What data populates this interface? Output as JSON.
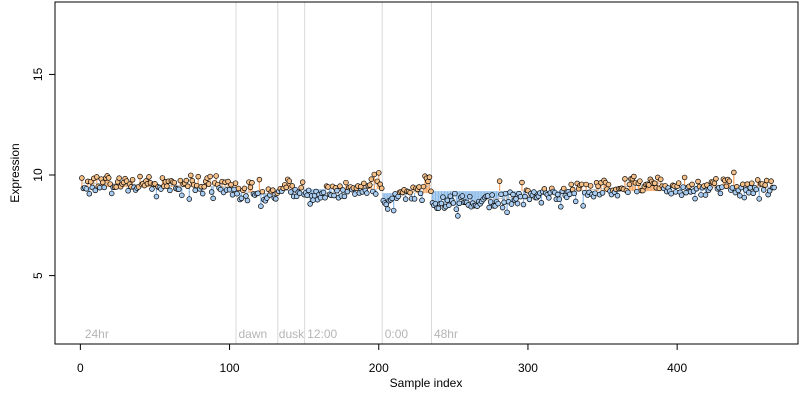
{
  "chart_data": {
    "type": "scatter",
    "xlabel": "Sample index",
    "ylabel": "Expression",
    "xlim": [
      -17,
      481
    ],
    "ylim": [
      1.6,
      18.6
    ],
    "x_ticks": [
      0,
      100,
      200,
      300,
      400
    ],
    "y_ticks": [
      5,
      10,
      15
    ],
    "x_tick_labels": [
      "0",
      "100",
      "200",
      "300",
      "400"
    ],
    "y_tick_labels": [
      "5",
      "10",
      "15"
    ],
    "grid": false,
    "legend": "none",
    "colors": {
      "above": "#f4a460",
      "below": "#87b8e8",
      "ref_line": "#b0b0b0",
      "trend": "#c0c0c0",
      "divider": "#d9d9d9",
      "label": "#b5b5b5"
    },
    "condition_boundaries": [
      105,
      133,
      151,
      203,
      236
    ],
    "condition_labels": [
      {
        "label": "24hr",
        "x": 3
      },
      {
        "label": "dawn",
        "x": 106
      },
      {
        "label": "dusk",
        "x": 133
      },
      {
        "label": "12:00",
        "x": 152
      },
      {
        "label": "0:00",
        "x": 204
      },
      {
        "label": "48hr",
        "x": 237
      }
    ],
    "segments": [
      {
        "x_start": 1,
        "x_end": 104,
        "trend_start": 9.6,
        "trend_end": 9.4,
        "ref": 9.4
      },
      {
        "x_start": 105,
        "x_end": 132,
        "trend_start": 9.2,
        "trend_end": 9.0,
        "ref": 9.1
      },
      {
        "x_start": 133,
        "x_end": 150,
        "trend_start": 9.2,
        "trend_end": 9.3,
        "ref": 9.3
      },
      {
        "x_start": 151,
        "x_end": 202,
        "trend_start": 8.9,
        "trend_end": 9.6,
        "ref": 9.3
      },
      {
        "x_start": 203,
        "x_end": 235,
        "trend_start": 8.6,
        "trend_end": 9.5,
        "ref": 9.1
      },
      {
        "x_start": 236,
        "x_end": 389,
        "trend_start": 8.5,
        "trend_end": 9.6,
        "ref": 9.2
      },
      {
        "x_start": 390,
        "x_end": 465,
        "trend_start": 9.4,
        "trend_end": 9.4,
        "ref": 9.4
      }
    ],
    "noise_sd": 0.27
  }
}
